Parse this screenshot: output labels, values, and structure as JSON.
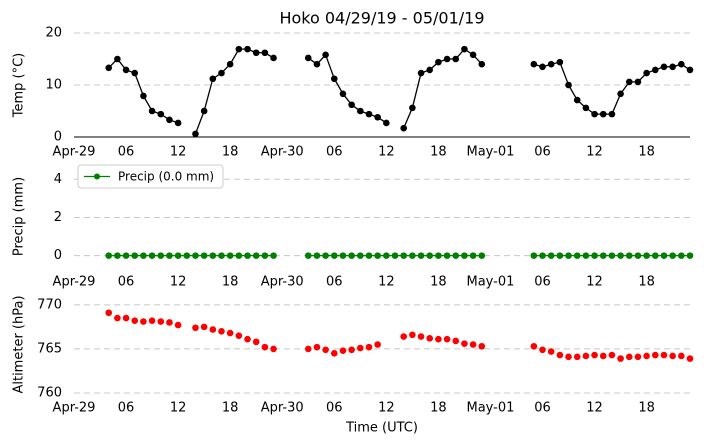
{
  "chart_data": [
    {
      "type": "line",
      "title": "Hoko 04/29/19 - 05/01/19",
      "ylabel": "Temp (°C)",
      "color": "#000000",
      "x": [
        4,
        5,
        6,
        7,
        8,
        9,
        10,
        11,
        12,
        13,
        14,
        15,
        16,
        17,
        18,
        19,
        20,
        21,
        22,
        23,
        24,
        25,
        26,
        27,
        28,
        29,
        30,
        31,
        32,
        33,
        34,
        35,
        36,
        37,
        38,
        39,
        40,
        41,
        42,
        43,
        44,
        45,
        46,
        47,
        48,
        49,
        50,
        51,
        52,
        53,
        54,
        55,
        56,
        57,
        58,
        59,
        60,
        61,
        62,
        63,
        64,
        65,
        66,
        67,
        68,
        69,
        70,
        71
      ],
      "values": [
        13.3,
        15,
        12.9,
        12.3,
        7.9,
        5,
        4.4,
        3.3,
        2.7,
        null,
        0.6,
        5,
        11.2,
        12.3,
        14,
        16.9,
        16.9,
        16.2,
        16.2,
        15.2,
        null,
        null,
        null,
        15.2,
        14,
        15.8,
        11.2,
        8.3,
        6.2,
        5,
        4.4,
        3.8,
        2.7,
        null,
        1.7,
        5.6,
        12.3,
        12.9,
        14.4,
        15,
        15,
        16.9,
        15.8,
        14,
        null,
        null,
        null,
        null,
        null,
        14,
        13.5,
        14,
        14.4,
        10,
        7.1,
        5.6,
        4.4,
        4.4,
        4.4,
        8.3,
        10.6,
        10.6,
        12.3,
        12.9,
        13.5,
        13.5,
        14,
        12.9
      ],
      "xlim": [
        0,
        71
      ],
      "ylim": [
        0,
        20
      ],
      "xticks": [
        {
          "value": 0,
          "label": "Apr-29"
        },
        {
          "value": 6,
          "label": "06"
        },
        {
          "value": 12,
          "label": "12"
        },
        {
          "value": 18,
          "label": "18"
        },
        {
          "value": 24,
          "label": "Apr-30"
        },
        {
          "value": 30,
          "label": "06"
        },
        {
          "value": 36,
          "label": "12"
        },
        {
          "value": 42,
          "label": "18"
        },
        {
          "value": 48,
          "label": "May-01"
        },
        {
          "value": 54,
          "label": "06"
        },
        {
          "value": 60,
          "label": "12"
        },
        {
          "value": 66,
          "label": "18"
        }
      ],
      "yticks": [
        0,
        10,
        20
      ],
      "grid": true
    },
    {
      "type": "line",
      "ylabel": "Precip (mm)",
      "legend": "upper left",
      "x": [
        4,
        5,
        6,
        7,
        8,
        9,
        10,
        11,
        12,
        13,
        14,
        15,
        16,
        17,
        18,
        19,
        20,
        21,
        22,
        23,
        24,
        25,
        26,
        27,
        28,
        29,
        30,
        31,
        32,
        33,
        34,
        35,
        36,
        37,
        38,
        39,
        40,
        41,
        42,
        43,
        44,
        45,
        46,
        47,
        48,
        49,
        50,
        51,
        52,
        53,
        54,
        55,
        56,
        57,
        58,
        59,
        60,
        61,
        62,
        63,
        64,
        65,
        66,
        67,
        68,
        69,
        70,
        71
      ],
      "series": [
        {
          "name": "Precip (0.0 mm)",
          "color": "#008000",
          "values": [
            0,
            0,
            0,
            0,
            0,
            0,
            0,
            0,
            0,
            0,
            0,
            0,
            0,
            0,
            0,
            0,
            0,
            0,
            0,
            0,
            null,
            null,
            null,
            0,
            0,
            0,
            0,
            0,
            0,
            0,
            0,
            0,
            0,
            0,
            0,
            0,
            0,
            0,
            0,
            0,
            0,
            0,
            0,
            0,
            null,
            null,
            null,
            null,
            null,
            0,
            0,
            0,
            0,
            0,
            0,
            0,
            0,
            0,
            0,
            0,
            0,
            0,
            0,
            0,
            0,
            0,
            0,
            0
          ]
        }
      ],
      "xlim": [
        0,
        71
      ],
      "ylim": [
        -0.7,
        4.8
      ],
      "xticks": [
        {
          "value": 0,
          "label": "Apr-29"
        },
        {
          "value": 6,
          "label": "06"
        },
        {
          "value": 12,
          "label": "12"
        },
        {
          "value": 18,
          "label": "18"
        },
        {
          "value": 24,
          "label": "Apr-30"
        },
        {
          "value": 30,
          "label": "06"
        },
        {
          "value": 36,
          "label": "12"
        },
        {
          "value": 42,
          "label": "18"
        },
        {
          "value": 48,
          "label": "May-01"
        },
        {
          "value": 54,
          "label": "06"
        },
        {
          "value": 60,
          "label": "12"
        },
        {
          "value": 66,
          "label": "18"
        }
      ],
      "yticks": [
        0,
        2,
        4
      ],
      "grid": true
    },
    {
      "type": "scatter",
      "ylabel": "Altimeter (hPa)",
      "xlabel": "Time (UTC)",
      "color": "#ff0000",
      "x": [
        4,
        5,
        6,
        7,
        8,
        9,
        10,
        11,
        12,
        13,
        14,
        15,
        16,
        17,
        18,
        19,
        20,
        21,
        22,
        23,
        24,
        25,
        26,
        27,
        28,
        29,
        30,
        31,
        32,
        33,
        34,
        35,
        36,
        37,
        38,
        39,
        40,
        41,
        42,
        43,
        44,
        45,
        46,
        47,
        48,
        49,
        50,
        51,
        52,
        53,
        54,
        55,
        56,
        57,
        58,
        59,
        60,
        61,
        62,
        63,
        64,
        65,
        66,
        67,
        68,
        69,
        70,
        71
      ],
      "values": [
        769.1,
        768.5,
        768.5,
        768.2,
        768.1,
        768.2,
        768.1,
        768.0,
        767.7,
        null,
        767.4,
        767.5,
        767.2,
        767.0,
        766.8,
        766.5,
        766.1,
        765.8,
        765.2,
        765.0,
        null,
        null,
        null,
        765.0,
        765.2,
        764.9,
        764.5,
        764.8,
        764.9,
        765.1,
        765.2,
        765.5,
        null,
        null,
        766.4,
        766.6,
        766.4,
        766.2,
        766.1,
        766.1,
        765.9,
        765.6,
        765.5,
        765.3,
        null,
        null,
        null,
        null,
        null,
        765.3,
        764.9,
        764.7,
        764.3,
        764.1,
        764.1,
        764.2,
        764.3,
        764.2,
        764.3,
        763.9,
        764.1,
        764.1,
        764.2,
        764.3,
        764.3,
        764.2,
        764.2,
        763.9
      ],
      "xlim": [
        0,
        71
      ],
      "ylim": [
        760,
        771
      ],
      "xticks": [
        {
          "value": 0,
          "label": "Apr-29"
        },
        {
          "value": 6,
          "label": "06"
        },
        {
          "value": 12,
          "label": "12"
        },
        {
          "value": 18,
          "label": "18"
        },
        {
          "value": 24,
          "label": "Apr-30"
        },
        {
          "value": 30,
          "label": "06"
        },
        {
          "value": 36,
          "label": "12"
        },
        {
          "value": 42,
          "label": "18"
        },
        {
          "value": 48,
          "label": "May-01"
        },
        {
          "value": 54,
          "label": "06"
        },
        {
          "value": 60,
          "label": "12"
        },
        {
          "value": 66,
          "label": "18"
        }
      ],
      "yticks": [
        760,
        765,
        770
      ],
      "grid": true
    }
  ]
}
